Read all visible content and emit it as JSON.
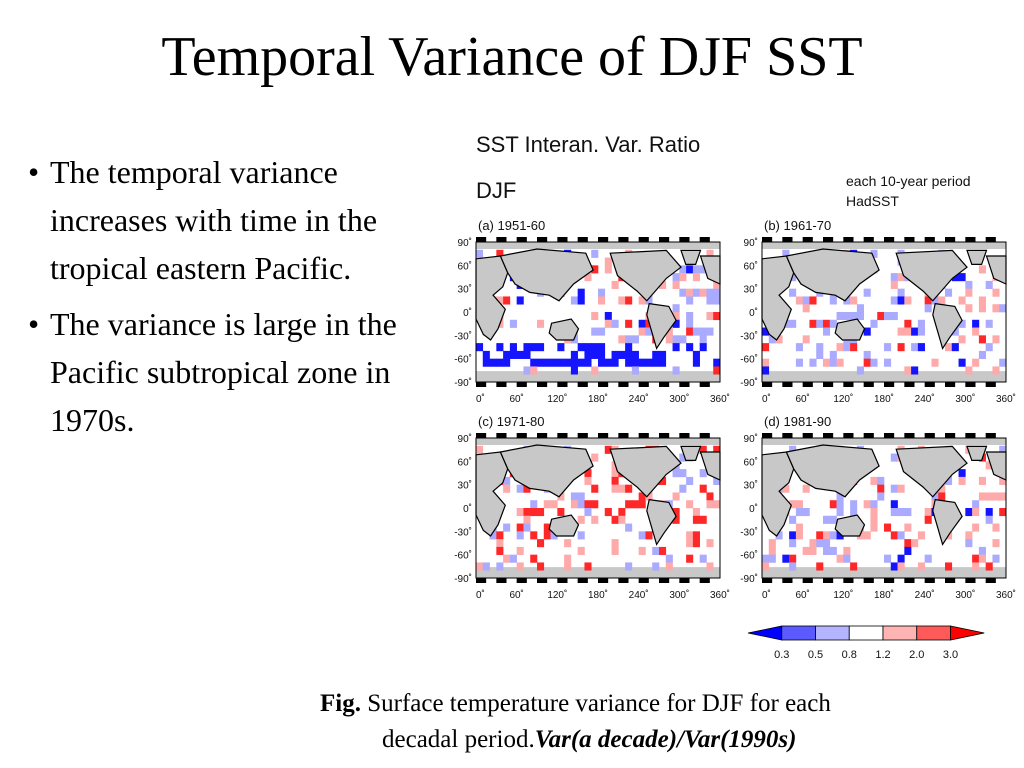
{
  "slide": {
    "title": "Temporal Variance of DJF SST",
    "bullets": [
      "The temporal variance increases with time in the tropical eastern Pacific.",
      "The variance is large in the Pacific subtropical zone in 1970s."
    ],
    "bullet_char": "•"
  },
  "figure": {
    "title": "SST Interan. Var. Ratio",
    "season": "DJF",
    "note_line1": "each 10-year period",
    "note_line2": "HadSST",
    "panels": [
      {
        "label": "(a) 1951-60"
      },
      {
        "label": "(b) 1961-70"
      },
      {
        "label": "(c) 1971-80"
      },
      {
        "label": "(d) 1981-90"
      }
    ],
    "lat_ticks": [
      "90˚",
      "60˚",
      "30˚",
      "0˚",
      "-30˚",
      "-60˚",
      "-90˚"
    ],
    "lon_ticks": [
      "0˚",
      "60˚",
      "120˚",
      "180˚",
      "240˚",
      "300˚",
      "360˚"
    ],
    "colorbar": {
      "labels": [
        "0.3",
        "0.5",
        "0.8",
        "1.2",
        "2.0",
        "3.0"
      ],
      "colors": [
        "#0000ff",
        "#5a5aff",
        "#b4b4ff",
        "#ffffff",
        "#ffb4b4",
        "#ff5a5a",
        "#ff0000"
      ]
    },
    "colors": {
      "land": "#c8c8c8",
      "strong_blue": "#1414ff",
      "light_blue": "#aaaaff",
      "light_red": "#ffaaaa",
      "strong_red": "#ff2828"
    }
  },
  "caption": {
    "fig_label": "Fig.",
    "text_line1": "Surface temperature  variance for DJF for each",
    "text_line2": "decadal period.",
    "formula": "Var(a decade)/Var(1990s)"
  }
}
